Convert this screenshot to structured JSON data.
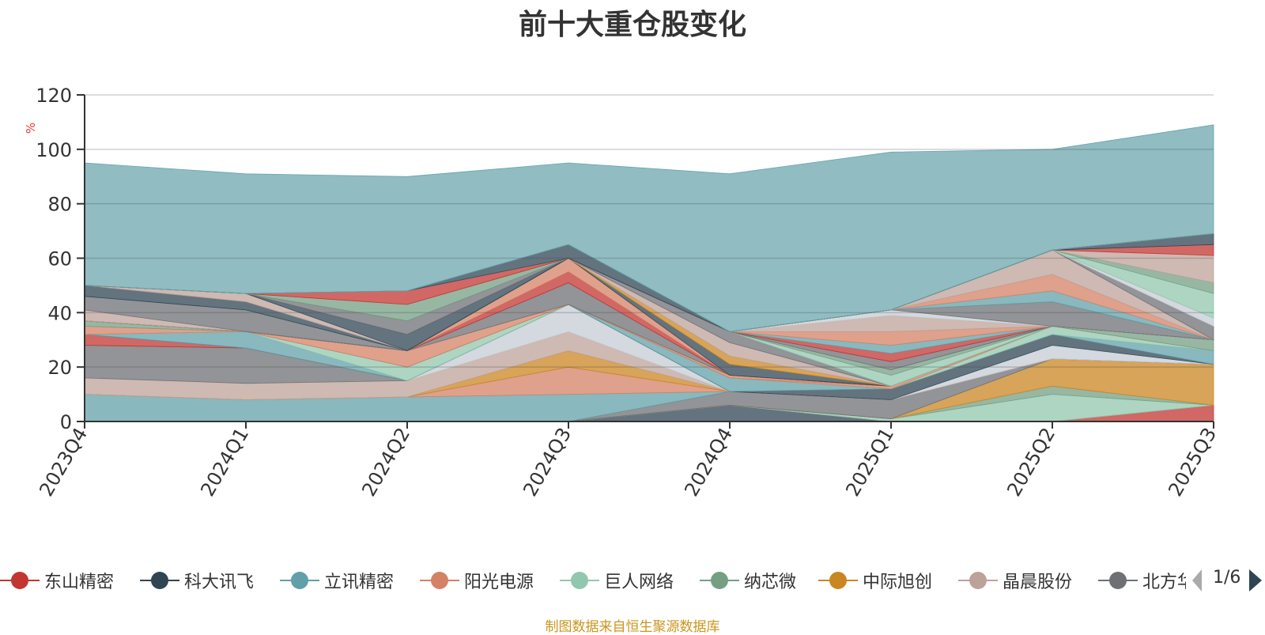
{
  "chart_data": {
    "type": "area",
    "title": "前十大重仓股变化",
    "ylabel": "%",
    "ylim": [
      0,
      120
    ],
    "yticks": [
      0,
      20,
      40,
      60,
      80,
      100,
      120
    ],
    "grid": true,
    "categories": [
      "2023Q4",
      "2024Q1",
      "2024Q2",
      "2024Q3",
      "2024Q4",
      "2025Q1",
      "2025Q2",
      "2025Q3"
    ],
    "series": [
      {
        "name": "东山精密",
        "values": [
          0,
          0,
          0,
          0,
          0,
          0,
          0,
          6
        ],
        "color": "#c23531"
      },
      {
        "name": "科大讯飞",
        "values": [
          0,
          0,
          0,
          0,
          6,
          0,
          0,
          0
        ],
        "color": "#2f4554"
      },
      {
        "name": "立讯精密",
        "values": [
          0,
          0,
          0,
          0,
          0,
          0,
          0,
          0
        ],
        "color": "#61a0a8"
      },
      {
        "name": "阳光电源",
        "values": [
          0,
          0,
          0,
          0,
          0,
          0,
          0,
          0
        ],
        "color": "#d48265"
      },
      {
        "name": "巨人网络",
        "values": [
          0,
          0,
          0,
          0,
          0,
          1,
          10,
          0
        ],
        "color": "#91c7ae"
      },
      {
        "name": "纳芯微",
        "values": [
          0,
          0,
          0,
          0,
          0,
          0,
          3,
          0
        ],
        "color": "#749f83"
      },
      {
        "name": "中际旭创",
        "values": [
          0,
          0,
          0,
          0,
          0,
          0,
          10,
          15
        ],
        "color": "#ca8622"
      },
      {
        "name": "晶晨股份",
        "values": [
          0,
          0,
          0,
          0,
          0,
          0,
          0,
          0
        ],
        "color": "#bda29a"
      },
      {
        "name": "北方华创",
        "values": [
          0,
          0,
          0,
          0,
          5,
          7,
          0,
          0
        ],
        "color": "#6e7074"
      },
      {
        "values": [
          10,
          8,
          9,
          10,
          0,
          0,
          0,
          0
        ],
        "color": "#61a0a8"
      },
      {
        "values": [
          0,
          0,
          0,
          10,
          0,
          0,
          0,
          0
        ],
        "color": "#d48265"
      },
      {
        "values": [
          0,
          0,
          0,
          6,
          0,
          0,
          0,
          0
        ],
        "color": "#ca8622"
      },
      {
        "values": [
          6,
          6,
          6,
          7,
          0,
          0,
          0,
          0
        ],
        "color": "#bda29a"
      },
      {
        "values": [
          0,
          0,
          0,
          10,
          0,
          0,
          0,
          0
        ],
        "color": "#c4ccd3"
      },
      {
        "values": [
          12,
          13,
          0,
          0,
          0,
          0,
          0,
          0
        ],
        "color": "#6e7074"
      },
      {
        "values": [
          4,
          0,
          0,
          0,
          0,
          0,
          0,
          0
        ],
        "color": "#c23531"
      },
      {
        "values": [
          0,
          0,
          0,
          0,
          0,
          0,
          5,
          0
        ],
        "color": "#c4ccd3"
      },
      {
        "values": [
          0,
          0,
          0,
          0,
          0,
          4,
          4,
          0
        ],
        "color": "#2f4554"
      },
      {
        "values": [
          0,
          6,
          0,
          0,
          5,
          0,
          0,
          5
        ],
        "color": "#61a0a8"
      },
      {
        "values": [
          0,
          0,
          5,
          0,
          0,
          0,
          3,
          0
        ],
        "color": "#91c7ae"
      },
      {
        "values": [
          3,
          0,
          0,
          0,
          0,
          1,
          0,
          0
        ],
        "color": "#d48265"
      },
      {
        "values": [
          2,
          0,
          0,
          0,
          0,
          0,
          0,
          4
        ],
        "color": "#749f83"
      },
      {
        "values": [
          0,
          0,
          6,
          0,
          1,
          0,
          0,
          0
        ],
        "color": "#d48265"
      },
      {
        "values": [
          0,
          0,
          0,
          8,
          0,
          0,
          0,
          0
        ],
        "color": "#6e7074"
      },
      {
        "values": [
          0,
          0,
          0,
          4,
          0,
          0,
          0,
          0
        ],
        "color": "#c23531"
      },
      {
        "values": [
          0,
          0,
          0,
          5,
          0,
          0,
          0,
          0
        ],
        "color": "#d48265"
      },
      {
        "values": [
          0,
          0,
          0,
          0,
          4,
          0,
          0,
          0
        ],
        "color": "#2f4554"
      },
      {
        "values": [
          0,
          0,
          0,
          0,
          3,
          0,
          0,
          0
        ],
        "color": "#ca8622"
      },
      {
        "values": [
          0,
          0,
          0,
          0,
          5,
          0,
          0,
          0
        ],
        "color": "#bda29a"
      },
      {
        "values": [
          0,
          0,
          0,
          0,
          4,
          0,
          0,
          0
        ],
        "color": "#6e7074"
      },
      {
        "values": [
          0,
          0,
          0,
          0,
          0,
          4,
          0,
          0
        ],
        "color": "#91c7ae"
      },
      {
        "values": [
          0,
          0,
          0,
          0,
          0,
          2,
          0,
          0
        ],
        "color": "#749f83"
      },
      {
        "values": [
          0,
          0,
          0,
          0,
          0,
          3,
          0,
          0
        ],
        "color": "#6e7074"
      },
      {
        "values": [
          0,
          0,
          0,
          0,
          0,
          3,
          0,
          0
        ],
        "color": "#c23531"
      },
      {
        "values": [
          0,
          0,
          0,
          0,
          0,
          3,
          0,
          0
        ],
        "color": "#61a0a8"
      },
      {
        "values": [
          0,
          0,
          0,
          0,
          0,
          5,
          0,
          0
        ],
        "color": "#d48265"
      },
      {
        "values": [
          0,
          0,
          0,
          0,
          0,
          6,
          0,
          0
        ],
        "color": "#bda29a"
      },
      {
        "values": [
          0,
          0,
          0,
          0,
          0,
          2,
          0,
          0
        ],
        "color": "#c4ccd3"
      },
      {
        "values": [
          0,
          0,
          0,
          0,
          0,
          0,
          9,
          0
        ],
        "color": "#6e7074"
      },
      {
        "values": [
          0,
          0,
          0,
          0,
          0,
          0,
          4,
          0
        ],
        "color": "#61a0a8"
      },
      {
        "values": [
          0,
          0,
          0,
          0,
          0,
          0,
          6,
          0
        ],
        "color": "#d48265"
      },
      {
        "values": [
          0,
          0,
          0,
          0,
          0,
          0,
          9,
          0
        ],
        "color": "#bda29a"
      },
      {
        "values": [
          0,
          0,
          0,
          0,
          0,
          0,
          0,
          5
        ],
        "color": "#6e7074"
      },
      {
        "values": [
          0,
          0,
          0,
          0,
          0,
          0,
          0,
          3
        ],
        "color": "#c4ccd3"
      },
      {
        "values": [
          0,
          0,
          0,
          0,
          0,
          0,
          0,
          9
        ],
        "color": "#91c7ae"
      },
      {
        "values": [
          0,
          0,
          0,
          0,
          0,
          0,
          0,
          4
        ],
        "color": "#749f83"
      },
      {
        "values": [
          0,
          0,
          0,
          0,
          0,
          0,
          0,
          10
        ],
        "color": "#bda29a"
      },
      {
        "values": [
          0,
          0,
          0,
          0,
          0,
          0,
          0,
          4
        ],
        "color": "#c23531"
      },
      {
        "values": [
          0,
          0,
          0,
          0,
          0,
          0,
          0,
          4
        ],
        "color": "#2f4554"
      },
      {
        "values": [
          4,
          0,
          0,
          0,
          0,
          0,
          0,
          0
        ],
        "color": "#bda29a"
      },
      {
        "values": [
          5,
          8,
          0,
          0,
          0,
          0,
          0,
          0
        ],
        "color": "#6e7074"
      },
      {
        "values": [
          4,
          3,
          0,
          0,
          0,
          0,
          0,
          0
        ],
        "color": "#2f4554"
      },
      {
        "values": [
          0,
          3,
          0,
          0,
          0,
          0,
          0,
          0
        ],
        "color": "#bda29a"
      },
      {
        "values": [
          0,
          0,
          6,
          0,
          0,
          0,
          0,
          0
        ],
        "color": "#2f4554"
      },
      {
        "values": [
          0,
          0,
          5,
          0,
          0,
          0,
          0,
          0
        ],
        "color": "#6e7074"
      },
      {
        "values": [
          0,
          0,
          6,
          0,
          0,
          0,
          0,
          0
        ],
        "color": "#749f83"
      },
      {
        "values": [
          0,
          0,
          5,
          0,
          0,
          0,
          0,
          0
        ],
        "color": "#c23531"
      },
      {
        "values": [
          0,
          0,
          0,
          0,
          0,
          0,
          0,
          0
        ],
        "color": "#c4ccd3"
      },
      {
        "values": [
          0,
          0,
          0,
          5,
          0,
          0,
          0,
          0
        ],
        "color": "#2f4554"
      },
      {
        "values": [
          0,
          0,
          0,
          0,
          0,
          0,
          0,
          0
        ],
        "color": "#749f83"
      },
      {
        "values": [
          45,
          44,
          42,
          30,
          58,
          58,
          37,
          40
        ],
        "color": "#61a0a8"
      }
    ]
  },
  "legend": {
    "items": [
      {
        "label": "东山精密",
        "color": "#c23531"
      },
      {
        "label": "科大讯飞",
        "color": "#2f4554"
      },
      {
        "label": "立讯精密",
        "color": "#61a0a8"
      },
      {
        "label": "阳光电源",
        "color": "#d48265"
      },
      {
        "label": "巨人网络",
        "color": "#91c7ae"
      },
      {
        "label": "纳芯微",
        "color": "#749f83"
      },
      {
        "label": "中际旭创",
        "color": "#ca8622"
      },
      {
        "label": "晶晨股份",
        "color": "#bda29a"
      },
      {
        "label": "北方华创",
        "color": "#6e7074"
      }
    ],
    "page_indicator": "1/6"
  },
  "footer_note": "制图数据来自恒生聚源数据库"
}
